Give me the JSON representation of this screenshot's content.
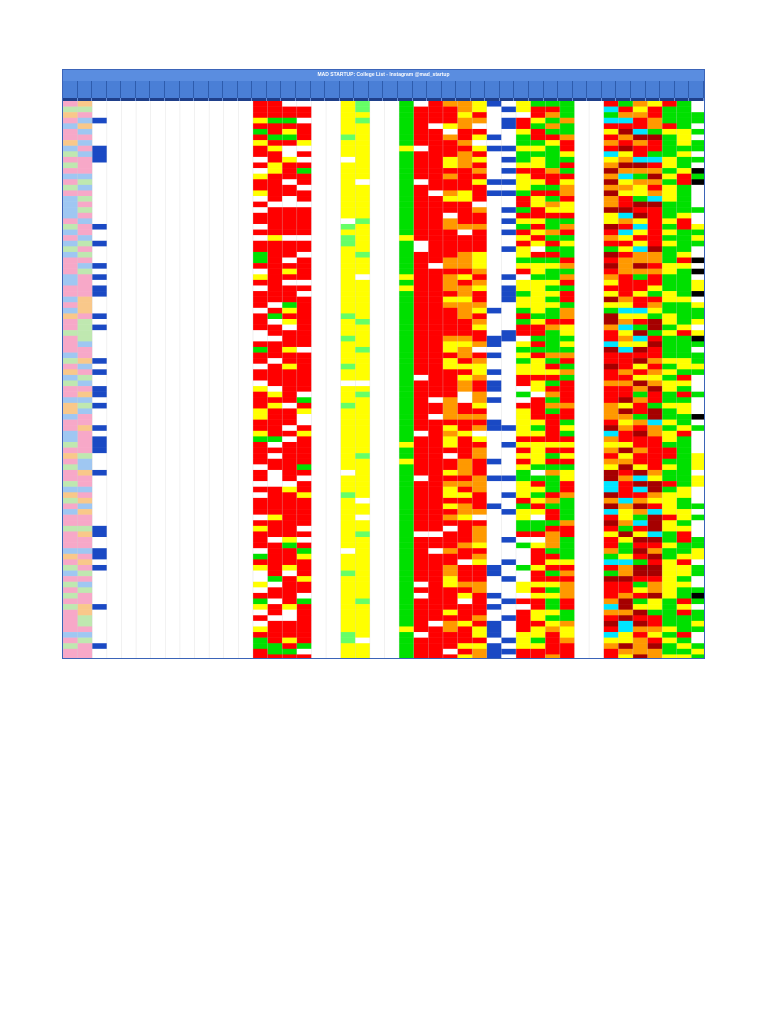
{
  "sheet": {
    "title": "MAD STARTUP: College List - Instagram @mad_startup",
    "column_count": 44,
    "row_count": 100
  },
  "colors": {
    "title_bg": "#5a8de0",
    "header_bg": "#4a7fd6",
    "subheader_bg": "#1f3f8a",
    "red": "#ff0000",
    "dark_red": "#a50000",
    "green": "#00e000",
    "light_green": "#66ff66",
    "yellow": "#ffff00",
    "orange": "#ff9900",
    "cyan": "#00e5ff",
    "name_pink": "#f7a8c8",
    "name_green": "#bfe8b0",
    "name_blue": "#9fc7f2",
    "name_orange": "#f9c88a",
    "link_blue": "#1a49c4",
    "white": "#ffffff",
    "black": "#000000"
  }
}
